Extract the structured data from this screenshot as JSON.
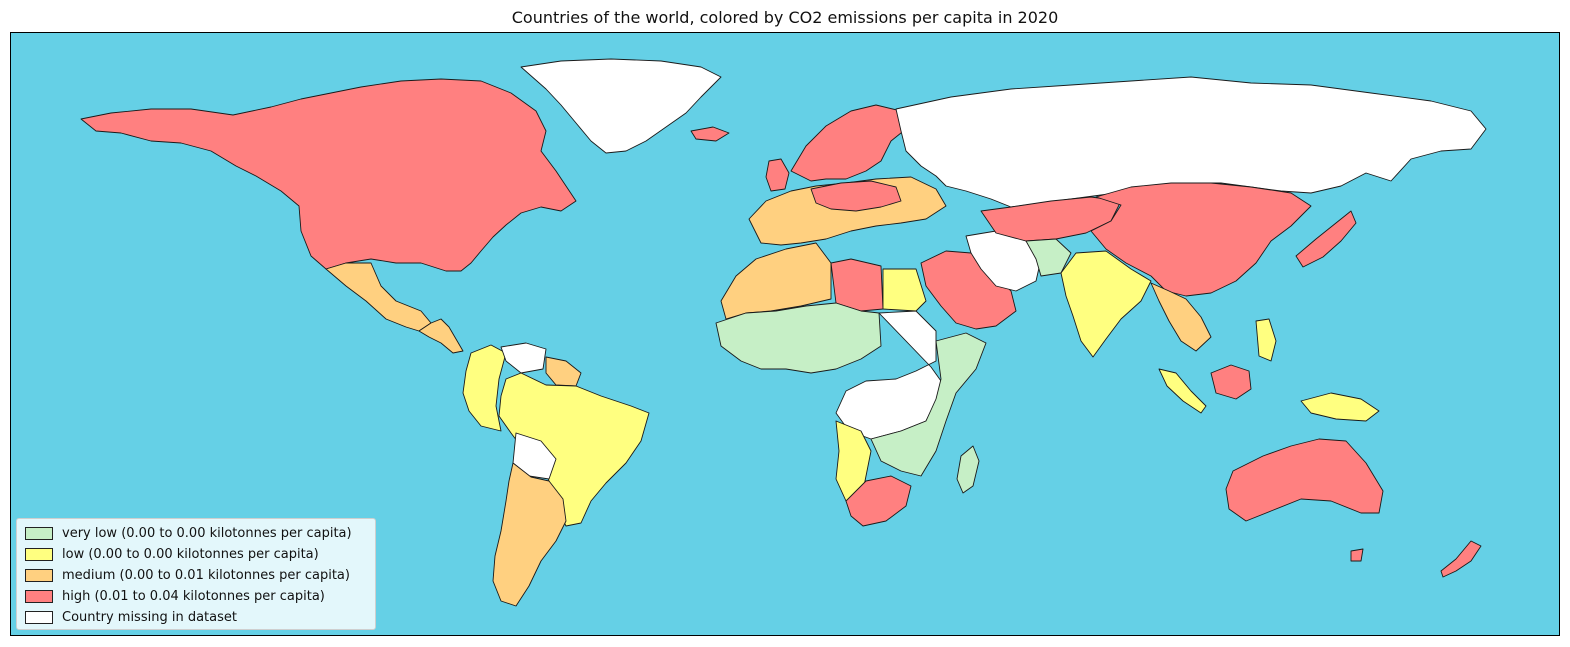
{
  "title": "Countries of the world, colored by CO2 emissions per capita in 2020",
  "colors": {
    "ocean": "#65D0E6",
    "very_low": "#C6EFC6",
    "low": "#FFFF80",
    "medium": "#FFD080",
    "high": "#FF8080",
    "missing": "#FFFFFF"
  },
  "legend": [
    {
      "label": "very low (0.00 to 0.00 kilotonnes per capita)",
      "color": "#C6EFC6"
    },
    {
      "label": "low (0.00 to 0.00 kilotonnes per capita)",
      "color": "#FFFF80"
    },
    {
      "label": "medium (0.00 to 0.01 kilotonnes per capita)",
      "color": "#FFD080"
    },
    {
      "label": "high (0.01 to 0.04 kilotonnes per capita)",
      "color": "#FF8080"
    },
    {
      "label": "Country missing in dataset",
      "color": "#FFFFFF"
    }
  ],
  "regions": [
    {
      "name": "canada-usa",
      "category": "high"
    },
    {
      "name": "mexico",
      "category": "medium"
    },
    {
      "name": "central-america",
      "category": "medium"
    },
    {
      "name": "greenland",
      "category": "missing"
    },
    {
      "name": "south-america-north",
      "category": "low"
    },
    {
      "name": "brazil",
      "category": "low"
    },
    {
      "name": "argentina-chile",
      "category": "medium"
    },
    {
      "name": "venezuela-guyana",
      "category": "missing"
    },
    {
      "name": "europe-west",
      "category": "medium"
    },
    {
      "name": "europe-north",
      "category": "high"
    },
    {
      "name": "russia",
      "category": "missing"
    },
    {
      "name": "north-africa",
      "category": "medium"
    },
    {
      "name": "libya",
      "category": "high"
    },
    {
      "name": "egypt",
      "category": "low"
    },
    {
      "name": "sahel",
      "category": "very_low"
    },
    {
      "name": "central-africa",
      "category": "missing"
    },
    {
      "name": "east-africa",
      "category": "very_low"
    },
    {
      "name": "southern-africa",
      "category": "high"
    },
    {
      "name": "angola",
      "category": "low"
    },
    {
      "name": "middle-east",
      "category": "high"
    },
    {
      "name": "iran",
      "category": "missing"
    },
    {
      "name": "central-asia",
      "category": "high"
    },
    {
      "name": "china",
      "category": "high"
    },
    {
      "name": "india",
      "category": "low"
    },
    {
      "name": "southeast-asia",
      "category": "medium"
    },
    {
      "name": "japan",
      "category": "high"
    },
    {
      "name": "indonesia",
      "category": "low"
    },
    {
      "name": "australia",
      "category": "high"
    },
    {
      "name": "new-zealand",
      "category": "high"
    },
    {
      "name": "madagascar",
      "category": "very_low"
    }
  ]
}
